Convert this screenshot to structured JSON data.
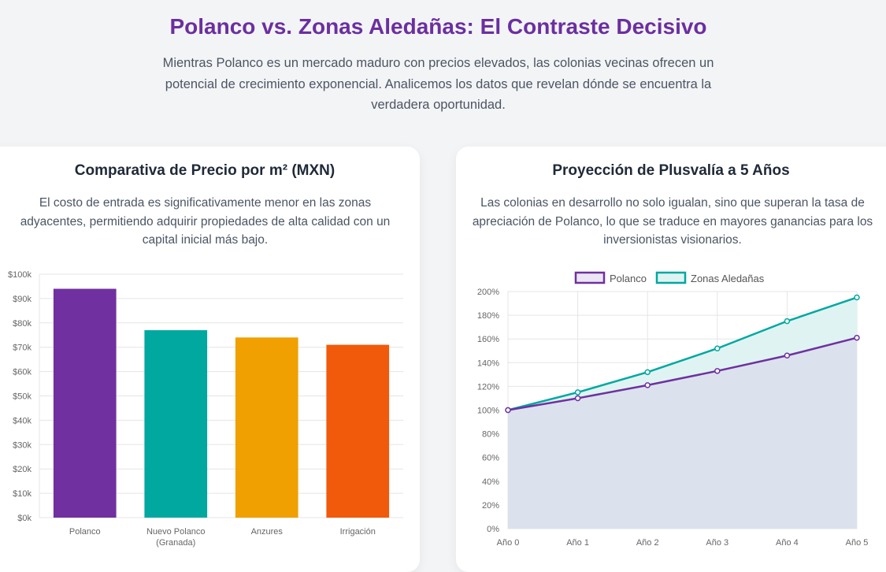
{
  "header": {
    "title": "Polanco vs. Zonas Aledañas: El Contraste Decisivo",
    "intro": "Mientras Polanco es un mercado maduro con precios elevados, las colonias vecinas ofrecen un potencial de crecimiento exponencial. Analicemos los datos que revelan dónde se encuentra la verdadera oportunidad."
  },
  "price_card": {
    "title": "Comparativa de Precio por m² (MXN)",
    "description": "El costo de entrada es significativamente menor en las zonas adyacentes, permitiendo adquirir propiedades de alta calidad con un capital inicial más bajo."
  },
  "growth_card": {
    "title": "Proyección de Plusvalía a 5 Años",
    "description": "Las colonias en desarrollo no solo igualan, sino que superan la tasa de apreciación de Polanco, lo que se traduce en mayores ganancias para los inversionistas visionarios."
  },
  "chart_data": [
    {
      "type": "bar",
      "title": "",
      "categories": [
        [
          "Polanco"
        ],
        [
          "Nuevo Polanco",
          "(Granada)"
        ],
        [
          "Anzures"
        ],
        [
          "Irrigación"
        ]
      ],
      "values": [
        94000,
        77000,
        74000,
        71000
      ],
      "colors": [
        "#7030a0",
        "#00a8a0",
        "#f0a000",
        "#f05a0a"
      ],
      "ylim": [
        0,
        100000
      ],
      "yticks": [
        0,
        10000,
        20000,
        30000,
        40000,
        50000,
        60000,
        70000,
        80000,
        90000,
        100000
      ],
      "ytick_labels": [
        "$0k",
        "$10k",
        "$20k",
        "$30k",
        "$40k",
        "$50k",
        "$60k",
        "$70k",
        "$80k",
        "$90k",
        "$100k"
      ],
      "grid": true,
      "legend": false
    },
    {
      "type": "area",
      "title": "",
      "x": [
        "Año 0",
        "Año 1",
        "Año 2",
        "Año 3",
        "Año 4",
        "Año 5"
      ],
      "series": [
        {
          "name": "Polanco",
          "values": [
            100,
            110,
            121,
            133,
            146,
            161
          ],
          "color": "#7030a0",
          "fill": "#ece6f4"
        },
        {
          "name": "Zonas Aledañas",
          "values": [
            100,
            115,
            132,
            152,
            175,
            195
          ],
          "color": "#00a8a0",
          "fill": "#dff4f2"
        }
      ],
      "under_fill": "#dbe2ee",
      "ylim": [
        0,
        200
      ],
      "yticks": [
        0,
        20,
        40,
        60,
        80,
        100,
        120,
        140,
        160,
        180,
        200
      ],
      "ytick_labels": [
        "0%",
        "20%",
        "40%",
        "60%",
        "80%",
        "100%",
        "120%",
        "140%",
        "160%",
        "180%",
        "200%"
      ],
      "grid": true,
      "legend": "top-center"
    }
  ]
}
